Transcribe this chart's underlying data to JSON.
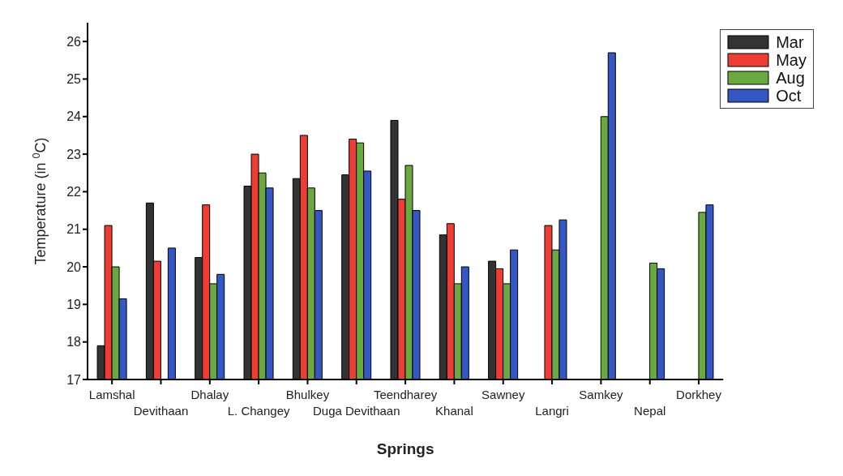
{
  "chart_data": {
    "type": "bar",
    "xlabel": "Springs",
    "ylabel": "Temperature (in $^{0}$C)",
    "categories": [
      "Lamshal",
      "Devithaan",
      "Dhalay",
      "L. Changey",
      "Bhulkey",
      "Duga Devithaan",
      "Teendharey",
      "Khanal",
      "Sawney",
      "Langri",
      "Samkey",
      "Nepal",
      "Dorkhey"
    ],
    "series": [
      {
        "name": "Mar",
        "color": "#333333",
        "values": [
          17.9,
          21.7,
          20.25,
          22.15,
          22.35,
          22.45,
          23.9,
          20.85,
          20.15,
          null,
          null,
          null,
          null
        ]
      },
      {
        "name": "May",
        "color": "#ee3d35",
        "values": [
          21.1,
          20.15,
          21.65,
          23.0,
          23.5,
          23.4,
          21.8,
          21.15,
          19.95,
          21.1,
          null,
          null,
          null
        ]
      },
      {
        "name": "Aug",
        "color": "#6aa842",
        "values": [
          20.0,
          null,
          19.55,
          22.5,
          22.1,
          23.3,
          22.7,
          19.55,
          19.55,
          20.45,
          24.0,
          20.1,
          21.45
        ]
      },
      {
        "name": "Oct",
        "color": "#3557c4",
        "values": [
          19.15,
          20.5,
          19.8,
          22.1,
          21.5,
          22.55,
          21.5,
          20.0,
          20.45,
          21.25,
          25.7,
          19.95,
          21.65
        ]
      }
    ],
    "ylim": [
      17,
      26.5
    ],
    "yticks": [
      17,
      18,
      19,
      20,
      21,
      22,
      23,
      24,
      25,
      26
    ],
    "grid": false,
    "legend": "top right"
  }
}
